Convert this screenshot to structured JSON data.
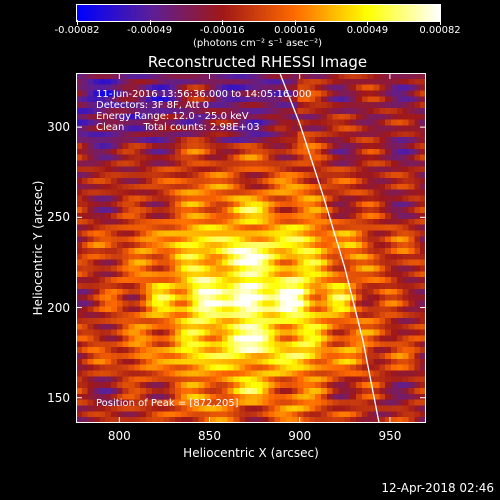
{
  "chart_data": {
    "type": "heatmap",
    "title": "Reconstructed RHESSI Image",
    "xlabel": "Heliocentric X (arcsec)",
    "ylabel": "Heliocentric Y (arcsec)",
    "xlim": [
      776,
      970
    ],
    "ylim": [
      136,
      330
    ],
    "xticks": [
      800,
      850,
      900,
      950
    ],
    "yticks": [
      150,
      200,
      250,
      300
    ],
    "colorbar": {
      "ticks": [
        "-0.00082",
        "-0.00049",
        "-0.00016",
        "0.00016",
        "0.00049",
        "0.00082"
      ],
      "units": "(photons cm⁻² s⁻¹ asec⁻²)",
      "colormap": [
        "#0000ff",
        "#5a1f9a",
        "#a01818",
        "#ff6a00",
        "#ffff00",
        "#ffffff"
      ]
    },
    "annotations": {
      "time_range": "11-Jun-2016 13:56:36.000 to 14:05:16.000",
      "detectors": "Detectors: 3F 8F, Att 0",
      "energy": "Energy Range: 12.0 - 25.0 keV",
      "method_counts": "Clean      Total counts: 2.98E+03",
      "peak": "Position of Peak = [872,205]"
    },
    "peak": {
      "x": 872,
      "y": 205
    },
    "limb": [
      {
        "x": 885,
        "y": 340
      },
      {
        "x": 900,
        "y": 302
      },
      {
        "x": 913,
        "y": 262
      },
      {
        "x": 925,
        "y": 222
      },
      {
        "x": 935,
        "y": 182
      },
      {
        "x": 944,
        "y": 136
      }
    ]
  },
  "footer": {
    "timestamp": "12-Apr-2018 02:46"
  }
}
